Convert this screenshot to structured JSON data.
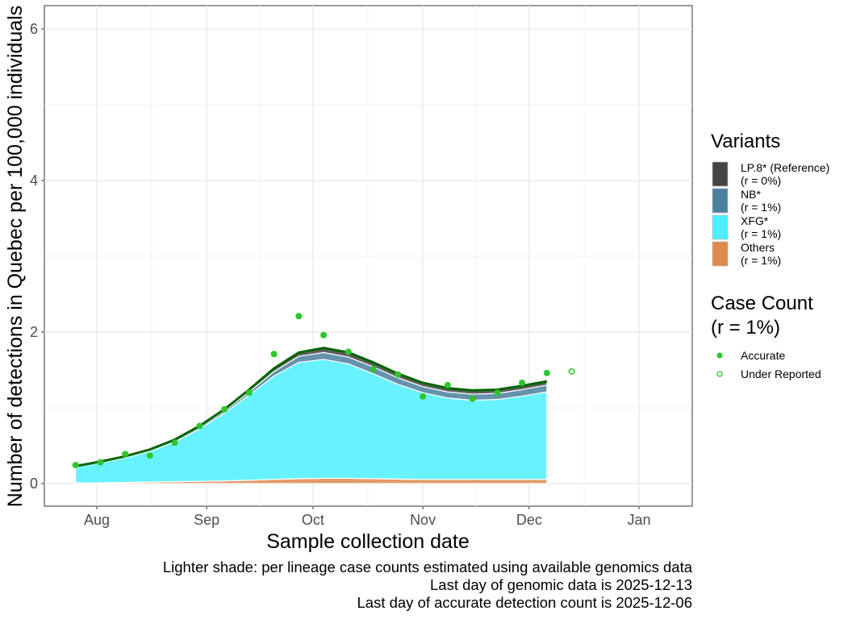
{
  "chart_data": {
    "type": "area",
    "xlabel": "Sample collection date",
    "ylabel": "Number of detections in Quebec per 100,000 individuals",
    "ylim": [
      -0.3,
      6.3
    ],
    "yticks": [
      0,
      2,
      4,
      6
    ],
    "xlim": [
      "2025-07-17",
      "2026-01-22"
    ],
    "xticks": [
      {
        "date": "2025-08-01",
        "label": "Aug"
      },
      {
        "date": "2025-09-01",
        "label": "Sep"
      },
      {
        "date": "2025-10-01",
        "label": "Oct"
      },
      {
        "date": "2025-11-01",
        "label": "Nov"
      },
      {
        "date": "2025-12-01",
        "label": "Dec"
      },
      {
        "date": "2026-01-01",
        "label": "Jan"
      }
    ],
    "grid": true,
    "dates": [
      "2025-07-26",
      "2025-08-02",
      "2025-08-09",
      "2025-08-16",
      "2025-08-23",
      "2025-08-30",
      "2025-09-06",
      "2025-09-13",
      "2025-09-20",
      "2025-09-27",
      "2025-10-04",
      "2025-10-11",
      "2025-10-18",
      "2025-10-25",
      "2025-11-01",
      "2025-11-08",
      "2025-11-15",
      "2025-11-22",
      "2025-11-29",
      "2025-12-06"
    ],
    "series": [
      {
        "name": "Others",
        "r": "(r = 1%)",
        "color": "#DD8A4F",
        "values": [
          0.01,
          0.01,
          0.015,
          0.02,
          0.025,
          0.03,
          0.035,
          0.045,
          0.055,
          0.065,
          0.07,
          0.07,
          0.065,
          0.06,
          0.055,
          0.055,
          0.055,
          0.055,
          0.055,
          0.055
        ]
      },
      {
        "name": "XFG*",
        "r": "(r = 1%)",
        "color": "#4DF0FF",
        "values": [
          0.205,
          0.265,
          0.325,
          0.405,
          0.525,
          0.69,
          0.895,
          1.125,
          1.365,
          1.535,
          1.57,
          1.51,
          1.385,
          1.25,
          1.145,
          1.075,
          1.045,
          1.055,
          1.1,
          1.155
        ]
      },
      {
        "name": "NB*",
        "r": "(r = 1%)",
        "color": "#4A7F9E",
        "values": [
          0.01,
          0.01,
          0.01,
          0.015,
          0.02,
          0.025,
          0.03,
          0.04,
          0.06,
          0.08,
          0.09,
          0.09,
          0.09,
          0.085,
          0.08,
          0.08,
          0.08,
          0.08,
          0.085,
          0.09
        ]
      },
      {
        "name": "LP.8* (Reference)",
        "r": "(r = 0%)",
        "color": "#444444",
        "values": [
          0.005,
          0.005,
          0.01,
          0.01,
          0.01,
          0.015,
          0.02,
          0.03,
          0.04,
          0.05,
          0.06,
          0.06,
          0.06,
          0.055,
          0.05,
          0.05,
          0.05,
          0.05,
          0.05,
          0.05
        ]
      }
    ],
    "case_count": {
      "title": "Case Count",
      "r": "(r = 1%)",
      "color": "#2DC62D",
      "accurate_label": "Accurate",
      "under_label": "Under Reported",
      "accurate": [
        0.245,
        0.28,
        0.39,
        0.37,
        0.54,
        0.76,
        0.98,
        1.2,
        1.71,
        2.21,
        1.96,
        1.74,
        1.51,
        1.44,
        1.15,
        1.3,
        1.12,
        1.2,
        1.33,
        1.46
      ],
      "under_reported": [
        {
          "date": "2025-12-13",
          "value": 1.48
        }
      ]
    },
    "total_line_color": "#006400",
    "legend_title": "Variants",
    "legend_placement": "right"
  },
  "captions": [
    "Lighter shade: per lineage case counts estimated using available genomics data",
    "Last day of genomic data is 2025-12-13",
    "Last day of accurate detection count is 2025-12-06"
  ]
}
